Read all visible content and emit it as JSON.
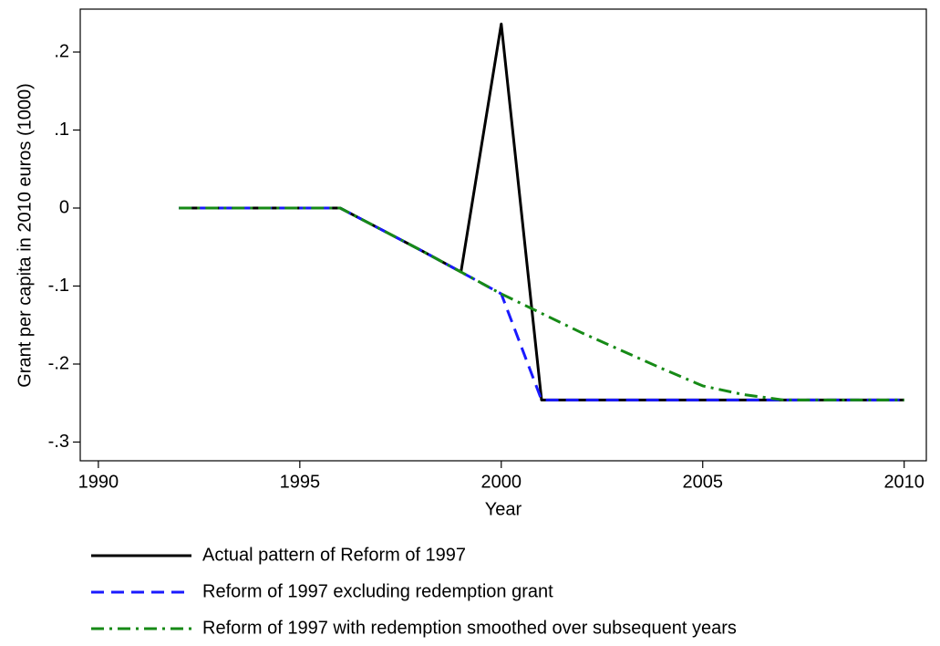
{
  "chart_data": {
    "type": "line",
    "xlabel": "Year",
    "ylabel": "Grant per capita in 2010 euros (1000)",
    "x": [
      1992,
      1993,
      1994,
      1995,
      1996,
      1997,
      1998,
      1999,
      2000,
      2001,
      2002,
      2003,
      2004,
      2005,
      2006,
      2007,
      2008,
      2009,
      2010
    ],
    "series": [
      {
        "name": "Actual pattern of Reform of 1997",
        "color": "#000000",
        "linestyle": "solid",
        "values": [
          0,
          0,
          0,
          0,
          0,
          -0.027,
          -0.054,
          -0.082,
          0.236,
          -0.246,
          -0.246,
          -0.246,
          -0.246,
          -0.246,
          -0.246,
          -0.246,
          -0.246,
          -0.246,
          -0.246
        ]
      },
      {
        "name": "Reform of 1997 excluding redemption grant",
        "color": "#1a1aff",
        "linestyle": "dashed",
        "values": [
          0,
          0,
          0,
          0,
          0,
          -0.027,
          -0.054,
          -0.082,
          -0.11,
          -0.246,
          -0.246,
          -0.246,
          -0.246,
          -0.246,
          -0.246,
          -0.246,
          -0.246,
          -0.246,
          -0.246
        ]
      },
      {
        "name": "Reform of 1997 with redemption smoothed over subsequent years",
        "color": "#168a16",
        "linestyle": "dashdot",
        "values": [
          0,
          0,
          0,
          0,
          0,
          -0.027,
          -0.054,
          -0.082,
          -0.11,
          -0.135,
          -0.16,
          -0.183,
          -0.206,
          -0.228,
          -0.239,
          -0.246,
          -0.246,
          -0.246,
          -0.246
        ]
      }
    ],
    "xlim": [
      1989.55,
      2010.55
    ],
    "xticks": [
      1990,
      1995,
      2000,
      2005,
      2010
    ],
    "ylim": [
      -0.324,
      0.255
    ],
    "yticks": [
      {
        "value": -0.3,
        "label": "-.3"
      },
      {
        "value": -0.2,
        "label": "-.2"
      },
      {
        "value": -0.1,
        "label": "-.1"
      },
      0,
      {
        "value": 0.1,
        "label": ".1"
      },
      {
        "value": 0.2,
        "label": ".2"
      }
    ],
    "grid": false,
    "legend": "bottom"
  }
}
